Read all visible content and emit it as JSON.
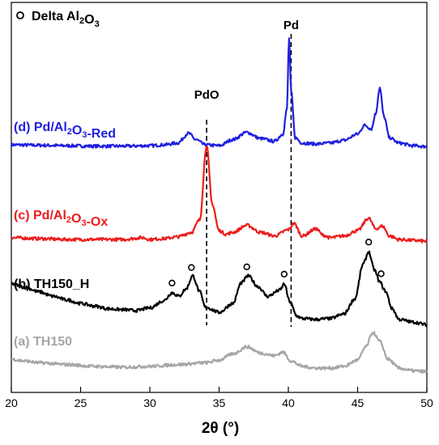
{
  "chart_data": {
    "type": "line",
    "xlabel": "2θ (°)",
    "xlim": [
      20,
      50
    ],
    "xticks": [
      20,
      25,
      30,
      35,
      40,
      45,
      50
    ],
    "yticks_shown": false,
    "grid": false,
    "legend": {
      "marker": "circle-open",
      "text": "Delta Al",
      "sub1": "2",
      "mid": "O",
      "sub2": "3",
      "placement": "top-left"
    },
    "reference_lines": [
      {
        "label": "PdO",
        "x": 34.1
      },
      {
        "label": "Pd",
        "x": 40.2
      }
    ],
    "series": [
      {
        "id": "d",
        "color": "#1f1fe0",
        "label_parts": [
          {
            "t": "(d) Pd/Al"
          },
          {
            "t": "2",
            "sub": true
          },
          {
            "t": "O"
          },
          {
            "t": "3",
            "sub": true
          },
          {
            "t": "-Red"
          }
        ],
        "baseline": 0.8,
        "points": [
          [
            20,
            1.0
          ],
          [
            22,
            0.95
          ],
          [
            24,
            0.9
          ],
          [
            26,
            0.85
          ],
          [
            28,
            0.85
          ],
          [
            30,
            0.9
          ],
          [
            31,
            1.0
          ],
          [
            32,
            1.2
          ],
          [
            32.8,
            2.3
          ],
          [
            33.3,
            1.6
          ],
          [
            34,
            1.0
          ],
          [
            35,
            0.9
          ],
          [
            36,
            1.6
          ],
          [
            37,
            2.4
          ],
          [
            38,
            1.7
          ],
          [
            39,
            1.4
          ],
          [
            39.6,
            2.2
          ],
          [
            39.9,
            5.0
          ],
          [
            40.05,
            13.0
          ],
          [
            40.2,
            7.0
          ],
          [
            40.5,
            1.8
          ],
          [
            41,
            1.2
          ],
          [
            42,
            1.1
          ],
          [
            43,
            1.2
          ],
          [
            44,
            1.5
          ],
          [
            45,
            2.2
          ],
          [
            45.5,
            3.2
          ],
          [
            46,
            2.8
          ],
          [
            46.3,
            4.5
          ],
          [
            46.6,
            7.4
          ],
          [
            46.9,
            4.2
          ],
          [
            47.3,
            1.8
          ],
          [
            48,
            1.2
          ],
          [
            49,
            0.9
          ],
          [
            50,
            0.8
          ]
        ]
      },
      {
        "id": "c",
        "color": "#ee1c1c",
        "label_parts": [
          {
            "t": "(c) Pd/Al"
          },
          {
            "t": "2",
            "sub": true
          },
          {
            "t": "O"
          },
          {
            "t": "3",
            "sub": true
          },
          {
            "t": "-Ox"
          }
        ],
        "baseline": 0.8,
        "points": [
          [
            20,
            1.2
          ],
          [
            22,
            1.1
          ],
          [
            24,
            1.0
          ],
          [
            26,
            1.0
          ],
          [
            28,
            1.0
          ],
          [
            29.5,
            1.2
          ],
          [
            30,
            1.0
          ],
          [
            31,
            1.1
          ],
          [
            32,
            1.3
          ],
          [
            33,
            1.8
          ],
          [
            33.6,
            3.2
          ],
          [
            34.1,
            11.6
          ],
          [
            34.5,
            5.0
          ],
          [
            35,
            2.0
          ],
          [
            35.5,
            1.6
          ],
          [
            36,
            1.8
          ],
          [
            37,
            2.6
          ],
          [
            38,
            1.8
          ],
          [
            39,
            1.4
          ],
          [
            40,
            2.1
          ],
          [
            40.4,
            2.8
          ],
          [
            41,
            1.4
          ],
          [
            42,
            2.2
          ],
          [
            42.5,
            1.5
          ],
          [
            43,
            1.2
          ],
          [
            44,
            1.4
          ],
          [
            45,
            2.0
          ],
          [
            45.8,
            3.4
          ],
          [
            46.3,
            2.2
          ],
          [
            46.8,
            2.5
          ],
          [
            47.3,
            1.4
          ],
          [
            48,
            1.0
          ],
          [
            49,
            0.9
          ],
          [
            50,
            0.8
          ]
        ]
      },
      {
        "id": "b",
        "color": "#000000",
        "label_parts": [
          {
            "t": "(b) TH150_H"
          }
        ],
        "baseline": 0.6,
        "points": [
          [
            20,
            5.2
          ],
          [
            21,
            4.8
          ],
          [
            22,
            4.3
          ],
          [
            23,
            3.8
          ],
          [
            24,
            3.4
          ],
          [
            25,
            3.0
          ],
          [
            26,
            2.7
          ],
          [
            27,
            2.4
          ],
          [
            28,
            2.3
          ],
          [
            29,
            2.2
          ],
          [
            30,
            2.5
          ],
          [
            31,
            3.3
          ],
          [
            31.6,
            4.2
          ],
          [
            32.1,
            3.8
          ],
          [
            32.6,
            4.6
          ],
          [
            33.1,
            6.1
          ],
          [
            33.6,
            4.3
          ],
          [
            34,
            2.6
          ],
          [
            35,
            2.0
          ],
          [
            36,
            3.0
          ],
          [
            36.6,
            5.3
          ],
          [
            37.1,
            6.1
          ],
          [
            37.8,
            4.9
          ],
          [
            38.5,
            3.8
          ],
          [
            39.4,
            4.5
          ],
          [
            39.7,
            5.2
          ],
          [
            40.1,
            3.2
          ],
          [
            40.6,
            1.6
          ],
          [
            41,
            1.3
          ],
          [
            42,
            1.2
          ],
          [
            43,
            1.3
          ],
          [
            44,
            1.8
          ],
          [
            44.8,
            3.5
          ],
          [
            45.4,
            7.4
          ],
          [
            45.8,
            8.8
          ],
          [
            46.2,
            6.8
          ],
          [
            46.6,
            5.4
          ],
          [
            47,
            4.4
          ],
          [
            47.5,
            2.4
          ],
          [
            48,
            1.2
          ],
          [
            49,
            0.9
          ],
          [
            50,
            0.6
          ]
        ]
      },
      {
        "id": "a",
        "color": "#a6a6a6",
        "label_parts": [
          {
            "t": "(a) TH150"
          }
        ],
        "baseline": 0.6,
        "points": [
          [
            20,
            2.0
          ],
          [
            21,
            1.8
          ],
          [
            22,
            1.6
          ],
          [
            24,
            1.4
          ],
          [
            26,
            1.2
          ],
          [
            28,
            1.1
          ],
          [
            30,
            1.2
          ],
          [
            32,
            1.4
          ],
          [
            34,
            1.6
          ],
          [
            35,
            1.9
          ],
          [
            36,
            2.6
          ],
          [
            37,
            3.4
          ],
          [
            38,
            2.7
          ],
          [
            39,
            2.4
          ],
          [
            39.6,
            2.8
          ],
          [
            40.2,
            1.8
          ],
          [
            41,
            1.2
          ],
          [
            42,
            1.0
          ],
          [
            43,
            1.0
          ],
          [
            44,
            1.2
          ],
          [
            45,
            1.9
          ],
          [
            45.6,
            3.4
          ],
          [
            46.1,
            5.0
          ],
          [
            46.6,
            4.0
          ],
          [
            47.2,
            2.0
          ],
          [
            48,
            1.0
          ],
          [
            49,
            0.7
          ],
          [
            50,
            0.6
          ]
        ]
      }
    ],
    "markers_on_b": [
      31.6,
      33.0,
      37.0,
      39.7,
      45.8,
      46.7
    ]
  }
}
